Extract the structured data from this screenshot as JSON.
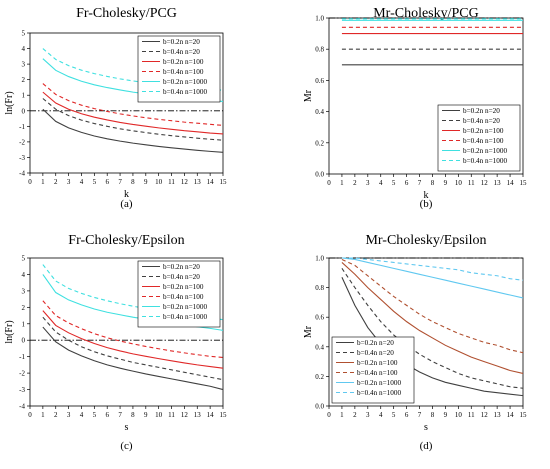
{
  "charts": [
    {
      "chart_data": {
        "type": "line",
        "title": "Fr-Cholesky/PCG",
        "panel_label": "(a)",
        "xlabel": "k",
        "ylabel": "ln(Fr)",
        "xlim": [
          0,
          15
        ],
        "ylim": [
          -4,
          5
        ],
        "x_ticks": [
          "0",
          "1",
          "2",
          "3",
          "4",
          "5",
          "6",
          "7",
          "8",
          "9",
          "10",
          "11",
          "12",
          "13",
          "14",
          "15"
        ],
        "y_ticks": [
          "-4",
          "-3",
          "-2",
          "-1",
          "0",
          "1",
          "2",
          "3",
          "4",
          "5"
        ],
        "reference_line": 0,
        "legend_position": "top-right",
        "x": [
          1,
          2,
          3,
          4,
          5,
          6,
          7,
          8,
          9,
          10,
          11,
          12,
          13,
          14,
          15
        ],
        "series": [
          {
            "name": "b=0.2n  n=20",
            "color": "#404040",
            "dash": "solid",
            "values": [
              0.1,
              -0.68,
              -1.1,
              -1.39,
              -1.62,
              -1.8,
              -1.95,
              -2.08,
              -2.19,
              -2.29,
              -2.38,
              -2.46,
              -2.54,
              -2.61,
              -2.67
            ]
          },
          {
            "name": "b=0.4n  n=20",
            "color": "#404040",
            "dash": "dashed",
            "values": [
              0.79,
              0.1,
              -0.31,
              -0.6,
              -0.82,
              -1.0,
              -1.16,
              -1.29,
              -1.4,
              -1.51,
              -1.6,
              -1.68,
              -1.76,
              -1.83,
              -1.89
            ]
          },
          {
            "name": "b=0.2n  n=100",
            "color": "#e02828",
            "dash": "solid",
            "values": [
              1.2,
              0.5,
              0.1,
              -0.19,
              -0.41,
              -0.59,
              -0.75,
              -0.88,
              -0.99,
              -1.1,
              -1.19,
              -1.28,
              -1.35,
              -1.43,
              -1.49
            ]
          },
          {
            "name": "b=0.4n  n=100",
            "color": "#e02828",
            "dash": "dashed",
            "values": [
              1.75,
              1.05,
              0.65,
              0.36,
              0.14,
              -0.04,
              -0.2,
              -0.33,
              -0.45,
              -0.55,
              -0.64,
              -0.73,
              -0.8,
              -0.87,
              -0.94
            ]
          },
          {
            "name": "b=0.2n  n=1000",
            "color": "#3fe0e0",
            "dash": "solid",
            "values": [
              3.35,
              2.6,
              2.2,
              1.9,
              1.67,
              1.49,
              1.34,
              1.2,
              1.09,
              0.99,
              0.89,
              0.81,
              0.74,
              0.67,
              0.6
            ]
          },
          {
            "name": "b=0.4n  n=1000",
            "color": "#3fe0e0",
            "dash": "dashed",
            "values": [
              4.0,
              3.3,
              2.9,
              2.61,
              2.39,
              2.21,
              2.05,
              1.92,
              1.81,
              1.7,
              1.61,
              1.53,
              1.45,
              1.38,
              1.32
            ]
          }
        ]
      }
    },
    {
      "chart_data": {
        "type": "line",
        "title": "Mr-Cholesky/PCG",
        "panel_label": "(b)",
        "xlabel": "k",
        "ylabel": "Mr",
        "xlim": [
          0,
          15
        ],
        "ylim": [
          0,
          1
        ],
        "x_ticks": [
          "0",
          "1",
          "2",
          "3",
          "4",
          "5",
          "6",
          "7",
          "8",
          "9",
          "10",
          "11",
          "12",
          "13",
          "14",
          "15"
        ],
        "y_ticks": [
          "0.0",
          "0.2",
          "0.4",
          "0.6",
          "0.8",
          "1.0"
        ],
        "reference_line": 1,
        "legend_position": "bottom-right",
        "x": [
          1,
          2,
          3,
          4,
          5,
          6,
          7,
          8,
          9,
          10,
          11,
          12,
          13,
          14,
          15
        ],
        "series": [
          {
            "name": "b=0.2n  n=20",
            "color": "#404040",
            "dash": "solid",
            "values": [
              0.7,
              0.7,
              0.7,
              0.7,
              0.7,
              0.7,
              0.7,
              0.7,
              0.7,
              0.7,
              0.7,
              0.7,
              0.7,
              0.7,
              0.7
            ]
          },
          {
            "name": "b=0.4n  n=20",
            "color": "#404040",
            "dash": "dashed",
            "values": [
              0.8,
              0.8,
              0.8,
              0.8,
              0.8,
              0.8,
              0.8,
              0.8,
              0.8,
              0.8,
              0.8,
              0.8,
              0.8,
              0.8,
              0.8
            ]
          },
          {
            "name": "b=0.2n  n=100",
            "color": "#e02828",
            "dash": "solid",
            "values": [
              0.9,
              0.9,
              0.9,
              0.9,
              0.9,
              0.9,
              0.9,
              0.9,
              0.9,
              0.9,
              0.9,
              0.9,
              0.9,
              0.9,
              0.9
            ]
          },
          {
            "name": "b=0.4n  n=100",
            "color": "#e02828",
            "dash": "dashed",
            "values": [
              0.94,
              0.94,
              0.94,
              0.94,
              0.94,
              0.94,
              0.94,
              0.94,
              0.94,
              0.94,
              0.94,
              0.94,
              0.94,
              0.94,
              0.94
            ]
          },
          {
            "name": "b=0.2n  n=1000",
            "color": "#3fe0e0",
            "dash": "solid",
            "values": [
              0.985,
              0.985,
              0.985,
              0.985,
              0.985,
              0.985,
              0.985,
              0.985,
              0.985,
              0.985,
              0.985,
              0.985,
              0.985,
              0.985,
              0.985
            ]
          },
          {
            "name": "b=0.4n  n=1000",
            "color": "#3fe0e0",
            "dash": "dashed",
            "values": [
              0.995,
              0.995,
              0.995,
              0.995,
              0.995,
              0.995,
              0.995,
              0.995,
              0.995,
              0.995,
              0.995,
              0.995,
              0.995,
              0.995,
              0.995
            ]
          }
        ]
      }
    },
    {
      "chart_data": {
        "type": "line",
        "title": "Fr-Cholesky/Epsilon",
        "panel_label": "(c)",
        "xlabel": "s",
        "ylabel": "ln(Fr)",
        "xlim": [
          0,
          15
        ],
        "ylim": [
          -4,
          5
        ],
        "x_ticks": [
          "0",
          "1",
          "2",
          "3",
          "4",
          "5",
          "6",
          "7",
          "8",
          "9",
          "10",
          "11",
          "12",
          "13",
          "14",
          "15"
        ],
        "y_ticks": [
          "-4",
          "-3",
          "-2",
          "-1",
          "0",
          "1",
          "2",
          "3",
          "4",
          "5"
        ],
        "reference_line": 0,
        "legend_position": "top-right",
        "x": [
          1,
          2,
          3,
          4,
          5,
          6,
          7,
          8,
          9,
          10,
          11,
          12,
          13,
          14,
          15
        ],
        "series": [
          {
            "name": "b=0.2n  n=20",
            "color": "#404040",
            "dash": "solid",
            "values": [
              0.8,
              -0.1,
              -0.6,
              -0.95,
              -1.25,
              -1.5,
              -1.7,
              -1.88,
              -2.05,
              -2.2,
              -2.35,
              -2.5,
              -2.65,
              -2.8,
              -3.0
            ]
          },
          {
            "name": "b=0.4n  n=20",
            "color": "#404040",
            "dash": "dashed",
            "values": [
              1.4,
              0.5,
              0.0,
              -0.4,
              -0.7,
              -0.95,
              -1.15,
              -1.35,
              -1.5,
              -1.65,
              -1.8,
              -1.95,
              -2.1,
              -2.25,
              -2.4
            ]
          },
          {
            "name": "b=0.2n  n=100",
            "color": "#e02828",
            "dash": "solid",
            "values": [
              1.8,
              0.9,
              0.45,
              0.1,
              -0.2,
              -0.45,
              -0.65,
              -0.83,
              -0.98,
              -1.12,
              -1.25,
              -1.38,
              -1.5,
              -1.6,
              -1.7
            ]
          },
          {
            "name": "b=0.4n  n=100",
            "color": "#e02828",
            "dash": "dashed",
            "values": [
              2.4,
              1.5,
              1.05,
              0.7,
              0.4,
              0.15,
              -0.05,
              -0.22,
              -0.38,
              -0.52,
              -0.65,
              -0.77,
              -0.88,
              -0.98,
              -1.05
            ]
          },
          {
            "name": "b=0.2n  n=1000",
            "color": "#3fe0e0",
            "dash": "solid",
            "values": [
              4.0,
              2.9,
              2.45,
              2.15,
              1.9,
              1.7,
              1.55,
              1.4,
              1.28,
              1.16,
              1.04,
              0.93,
              0.82,
              0.72,
              0.6
            ]
          },
          {
            "name": "b=0.4n  n=1000",
            "color": "#3fe0e0",
            "dash": "dashed",
            "values": [
              4.6,
              3.6,
              3.15,
              2.85,
              2.6,
              2.4,
              2.22,
              2.07,
              1.93,
              1.8,
              1.68,
              1.56,
              1.45,
              1.35,
              1.25
            ]
          }
        ]
      }
    },
    {
      "chart_data": {
        "type": "line",
        "title": "Mr-Cholesky/Epsilon",
        "panel_label": "(d)",
        "xlabel": "s",
        "ylabel": "Mr",
        "xlim": [
          0,
          15
        ],
        "ylim": [
          0,
          1
        ],
        "x_ticks": [
          "0",
          "1",
          "2",
          "3",
          "4",
          "5",
          "6",
          "7",
          "8",
          "9",
          "10",
          "11",
          "12",
          "13",
          "14",
          "15"
        ],
        "y_ticks": [
          "0.0",
          "0.2",
          "0.4",
          "0.6",
          "0.8",
          "1.0"
        ],
        "reference_line": 1,
        "legend_position": "bottom-left",
        "x": [
          1,
          2,
          3,
          4,
          5,
          6,
          7,
          8,
          9,
          10,
          11,
          12,
          13,
          14,
          15
        ],
        "series": [
          {
            "name": "b=0.2n  n=20",
            "color": "#404040",
            "dash": "solid",
            "values": [
              0.87,
              0.68,
              0.53,
              0.42,
              0.34,
              0.28,
              0.23,
              0.19,
              0.16,
              0.14,
              0.12,
              0.1,
              0.09,
              0.08,
              0.07
            ]
          },
          {
            "name": "b=0.4n  n=20",
            "color": "#404040",
            "dash": "dashed",
            "values": [
              0.93,
              0.8,
              0.68,
              0.57,
              0.48,
              0.41,
              0.35,
              0.3,
              0.26,
              0.22,
              0.19,
              0.17,
              0.15,
              0.13,
              0.12
            ]
          },
          {
            "name": "b=0.2n  n=100",
            "color": "#b05030",
            "dash": "solid",
            "values": [
              0.97,
              0.89,
              0.8,
              0.72,
              0.64,
              0.57,
              0.51,
              0.46,
              0.41,
              0.37,
              0.33,
              0.3,
              0.27,
              0.24,
              0.22
            ]
          },
          {
            "name": "b=0.4n  n=100",
            "color": "#b05030",
            "dash": "dashed",
            "values": [
              0.99,
              0.95,
              0.88,
              0.81,
              0.74,
              0.68,
              0.62,
              0.57,
              0.53,
              0.49,
              0.46,
              0.43,
              0.41,
              0.38,
              0.36
            ]
          },
          {
            "name": "b=0.2n  n=1000",
            "color": "#60c8f0",
            "dash": "solid",
            "values": [
              1.0,
              0.99,
              0.97,
              0.95,
              0.93,
              0.91,
              0.89,
              0.87,
              0.85,
              0.83,
              0.81,
              0.79,
              0.77,
              0.75,
              0.73
            ]
          },
          {
            "name": "b=0.4n  n=1000",
            "color": "#60c8f0",
            "dash": "dashed",
            "values": [
              1.0,
              1.0,
              0.99,
              0.98,
              0.97,
              0.96,
              0.95,
              0.94,
              0.93,
              0.92,
              0.9,
              0.89,
              0.88,
              0.86,
              0.85
            ]
          }
        ]
      }
    }
  ]
}
